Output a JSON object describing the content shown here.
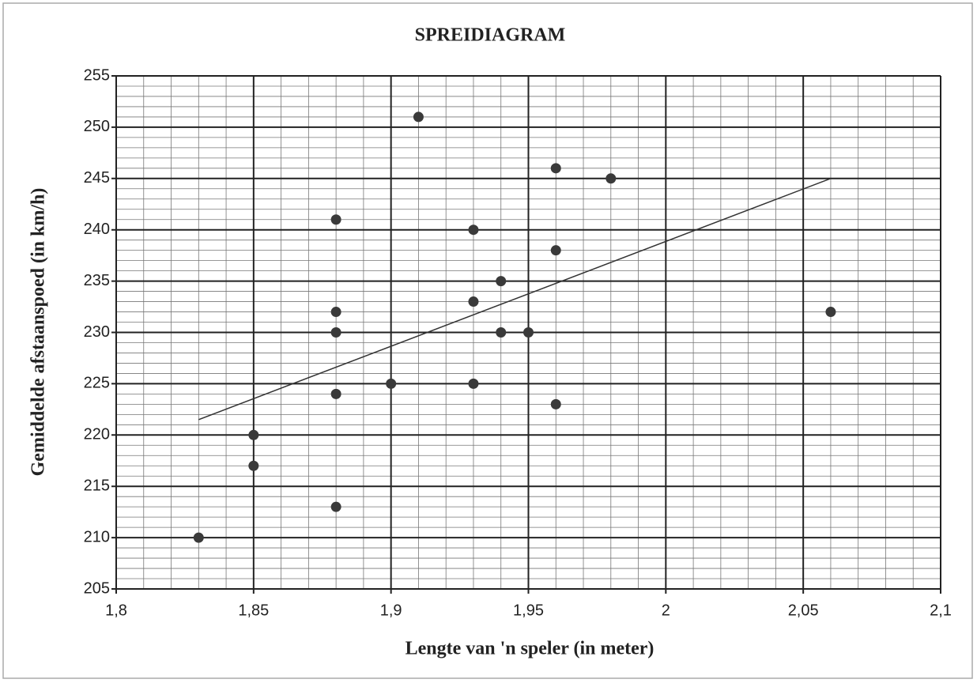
{
  "chart_data": {
    "type": "scatter",
    "title": "SPREIDIAGRAM",
    "x_label": "Lengte van 'n speler (in meter)",
    "y_label": "Gemiddelde afstaanspoed (in km/h)",
    "x": [
      1.83,
      1.85,
      1.85,
      1.88,
      1.88,
      1.88,
      1.88,
      1.88,
      1.9,
      1.91,
      1.93,
      1.93,
      1.93,
      1.94,
      1.94,
      1.95,
      1.96,
      1.96,
      1.96,
      1.98,
      2.06
    ],
    "values": [
      210,
      220,
      217,
      241,
      232,
      230,
      224,
      213,
      225,
      251,
      240,
      233,
      225,
      235,
      230,
      230,
      246,
      238,
      223,
      245,
      232
    ],
    "color": "#3a3a3a",
    "trendline": {
      "x": [
        1.83,
        2.06
      ],
      "values": [
        221.5,
        245
      ],
      "color": "#333333"
    },
    "xlim": [
      1.8,
      2.1
    ],
    "xticks": [
      {
        "value": 1.8,
        "label": "1,8"
      },
      {
        "value": 1.85,
        "label": "1,85"
      },
      {
        "value": 1.9,
        "label": "1,9"
      },
      {
        "value": 1.95,
        "label": "1,95"
      },
      2,
      {
        "value": 2.05,
        "label": "2,05"
      },
      {
        "value": 2.1,
        "label": "2,1"
      }
    ],
    "ylim": [
      205,
      255
    ],
    "yticks": [
      205,
      210,
      215,
      220,
      225,
      230,
      235,
      240,
      245,
      250,
      255
    ],
    "grid": true,
    "minor_grid_divisions": 5
  }
}
